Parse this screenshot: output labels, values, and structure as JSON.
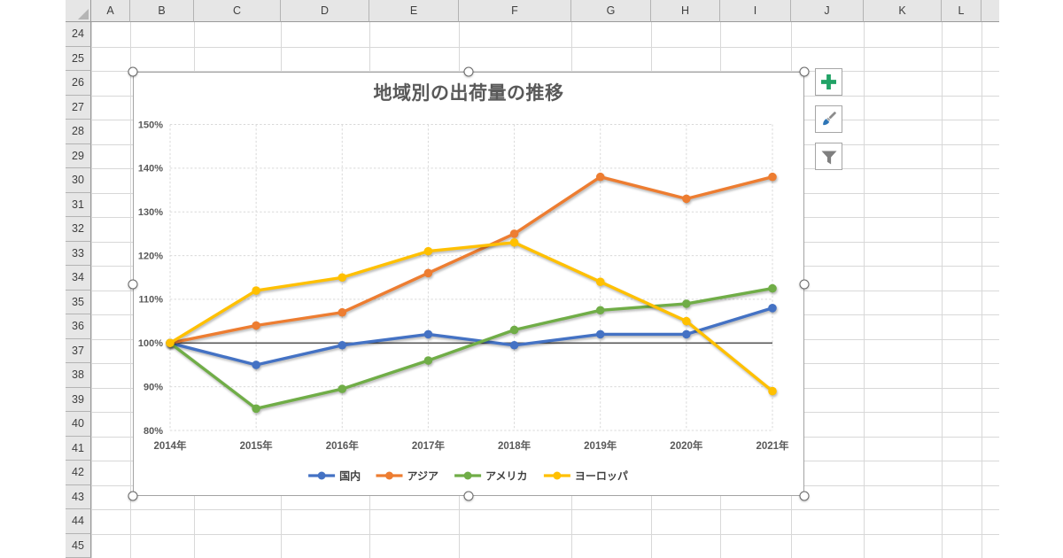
{
  "sheet": {
    "column_headers": [
      "A",
      "B",
      "C",
      "D",
      "E",
      "F",
      "G",
      "H",
      "I",
      "J",
      "K",
      "L"
    ],
    "row_headers": [
      "24",
      "25",
      "26",
      "27",
      "28",
      "29",
      "30",
      "31",
      "32",
      "33",
      "34",
      "35",
      "36",
      "37",
      "38",
      "39",
      "40",
      "41",
      "42",
      "43",
      "44",
      "45"
    ]
  },
  "chart": {
    "title": "地域別の出荷量の推移",
    "y_tick_labels": [
      "150%",
      "140%",
      "130%",
      "120%",
      "110%",
      "100%",
      "90%",
      "80%"
    ],
    "x_tick_labels": [
      "2014年",
      "2015年",
      "2016年",
      "2017年",
      "2018年",
      "2019年",
      "2020年",
      "2021年"
    ],
    "legend_labels": [
      "国内",
      "アジア",
      "アメリカ",
      "ヨーロッパ"
    ]
  },
  "chart_data": {
    "type": "line",
    "title": "地域別の出荷量の推移",
    "categories": [
      "2014年",
      "2015年",
      "2016年",
      "2017年",
      "2018年",
      "2019年",
      "2020年",
      "2021年"
    ],
    "series": [
      {
        "name": "国内",
        "color": "#4472C4",
        "values": [
          100,
          95,
          99.5,
          102,
          99.5,
          102,
          102,
          108
        ]
      },
      {
        "name": "アジア",
        "color": "#ED7D31",
        "values": [
          100,
          104,
          107,
          116,
          125,
          138,
          133,
          138
        ]
      },
      {
        "name": "アメリカ",
        "color": "#70AD47",
        "values": [
          100,
          85,
          89.5,
          96,
          103,
          107.5,
          109,
          112.5
        ]
      },
      {
        "name": "ヨーロッパ",
        "color": "#FFC000",
        "values": [
          100,
          112,
          115,
          121,
          123,
          114,
          105,
          89
        ]
      }
    ],
    "xlabel": "",
    "ylabel": "",
    "ylim": [
      80,
      150
    ],
    "ytick_step": 10,
    "ytick_format": "percent",
    "baseline_value": 100,
    "grid": "dashed",
    "legend_position": "bottom",
    "marker": "circle"
  },
  "chart_tools": [
    {
      "name": "chart-elements",
      "icon": "plus-icon",
      "color": "#21A366"
    },
    {
      "name": "chart-styles",
      "icon": "brush-icon",
      "color": "#2E75B6"
    },
    {
      "name": "chart-filters",
      "icon": "funnel-icon",
      "color": "#7F7F7F"
    }
  ],
  "colors": {
    "grid_line": "#D8D8D8",
    "header_bg": "#E6E6E6",
    "axis_text": "#595959",
    "chart_gridline": "#D9D9D9",
    "baseline": "#595959",
    "chart_border": "#A3A3A3"
  }
}
